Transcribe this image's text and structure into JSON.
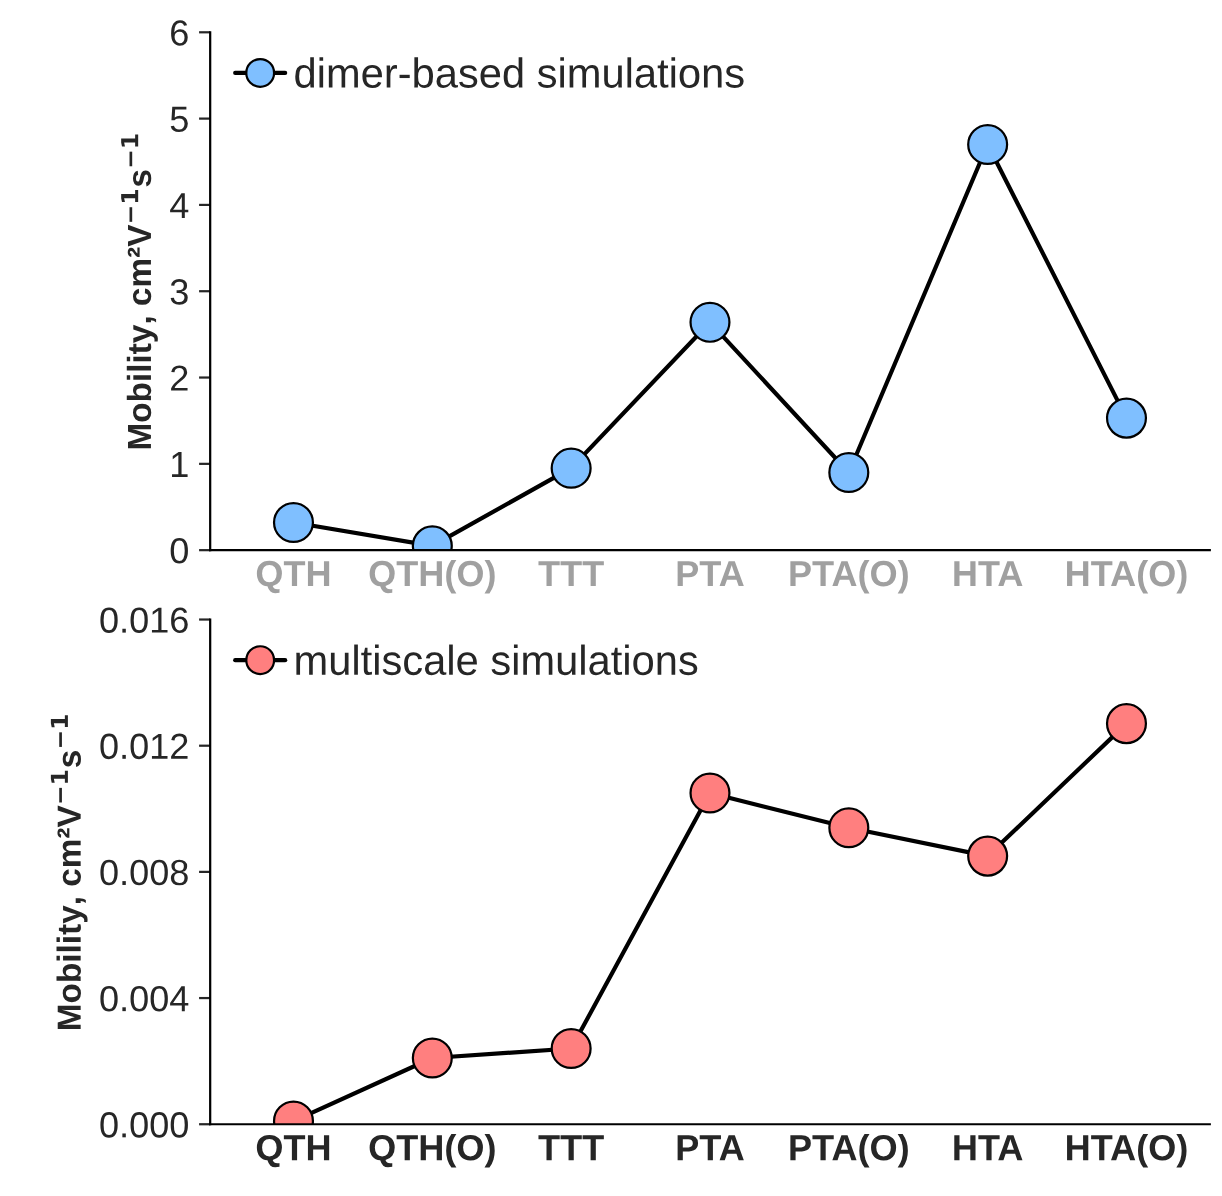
{
  "chart_data": [
    {
      "type": "line",
      "categories": [
        "QTH",
        "QTH(O)",
        "TTT",
        "PTA",
        "PTA(O)",
        "HTA",
        "HTA(O)"
      ],
      "ylabel": "Mobility, cm²V$^{−1}$s$^{−1}$",
      "ylim": [
        0,
        6
      ],
      "yticks": [
        0,
        1,
        2,
        3,
        4,
        5,
        6
      ],
      "grid": false,
      "legend": "top left",
      "marker": "circle",
      "line_style": "solid",
      "series": [
        {
          "name": "dimer-based simulations",
          "color": "#7fbfff",
          "values": [
            0.32,
            0.05,
            0.95,
            2.64,
            0.9,
            4.7,
            1.53
          ]
        }
      ]
    },
    {
      "type": "line",
      "categories": [
        "QTH",
        "QTH(O)",
        "TTT",
        "PTA",
        "PTA(O)",
        "HTA",
        "HTA(O)"
      ],
      "ylabel": "Mobility, cm²V$^{−1}$s$^{−1}$",
      "ylim": [
        0,
        0.016
      ],
      "yticks": [
        {
          "value": 0,
          "label": "0.000"
        },
        {
          "value": 0.004,
          "label": "0.004"
        },
        {
          "value": 0.008,
          "label": "0.008"
        },
        {
          "value": 0.012,
          "label": "0.012"
        },
        {
          "value": 0.016,
          "label": "0.016"
        }
      ],
      "grid": false,
      "legend": "top left",
      "marker": "circle",
      "line_style": "solid",
      "series": [
        {
          "name": "multiscale simulations",
          "color": "#ff7f7f",
          "values": [
            0.0001,
            0.0021,
            0.0024,
            0.0105,
            0.0094,
            0.0085,
            0.0127
          ]
        }
      ]
    }
  ]
}
